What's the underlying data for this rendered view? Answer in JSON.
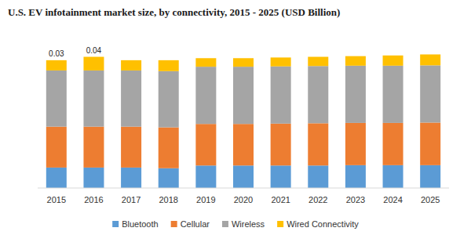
{
  "chart_data": {
    "type": "bar",
    "title": "U.S. EV infotainment market size, by connectivity, 2015 - 2025 (USD Billion)",
    "stacked": true,
    "tick_labels": "x",
    "grid": false,
    "legend": "bottom",
    "categories": [
      "2015",
      "2016",
      "2017",
      "2018",
      "2019",
      "2020",
      "2021",
      "2022",
      "2023",
      "2024",
      "2025"
    ],
    "ylim": [
      0,
      0.4
    ],
    "series": [
      {
        "name": "Bluetooth",
        "color": "#5b9bd5",
        "values": [
          0.06,
          0.06,
          0.06,
          0.058,
          0.066,
          0.066,
          0.066,
          0.066,
          0.067,
          0.067,
          0.067
        ]
      },
      {
        "name": "Cellular",
        "color": "#ed7d31",
        "values": [
          0.12,
          0.12,
          0.12,
          0.12,
          0.122,
          0.122,
          0.123,
          0.124,
          0.124,
          0.124,
          0.125
        ]
      },
      {
        "name": "Wireless",
        "color": "#a5a5a5",
        "values": [
          0.165,
          0.165,
          0.165,
          0.165,
          0.168,
          0.168,
          0.168,
          0.168,
          0.168,
          0.168,
          0.168
        ]
      },
      {
        "name": "Wired Connectivity",
        "color": "#ffc000",
        "values": [
          0.03,
          0.04,
          0.03,
          0.032,
          0.025,
          0.025,
          0.026,
          0.027,
          0.028,
          0.03,
          0.032
        ],
        "data_labels": true,
        "value_labels": [
          "0.03",
          "0.04",
          null,
          null,
          null,
          null,
          null,
          null,
          null,
          null,
          null
        ]
      }
    ]
  }
}
